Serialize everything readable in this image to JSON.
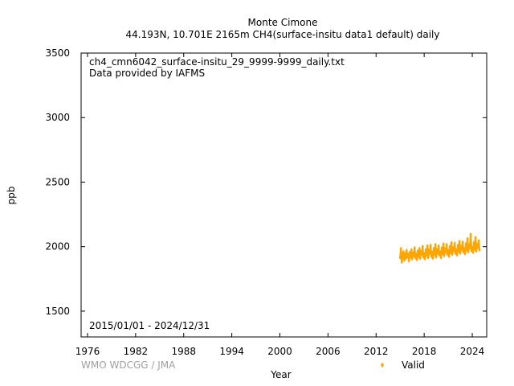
{
  "chart_data": {
    "type": "scatter",
    "title": "Monte Cimone",
    "subtitle": "44.193N, 10.701E 2165m    CH4(surface-insitu data1 default) daily",
    "file_label": "ch4_cmn6042_surface-insitu_29_9999-9999_daily.txt",
    "provider_label": "Data provided by IAFMS",
    "period_label": "2015/01/01 - 2024/12/31",
    "xlabel": "Year",
    "ylabel": "ppb",
    "xlim": [
      1975.2,
      2025.8
    ],
    "ylim": [
      1300,
      3500
    ],
    "x_ticks": [
      1976,
      1982,
      1988,
      1994,
      2000,
      2006,
      2012,
      2018,
      2024
    ],
    "y_ticks": [
      1500,
      2000,
      2500,
      3000,
      3500
    ],
    "grid": false,
    "legend_position": "bottom-right",
    "series": [
      {
        "name": "Valid",
        "color": "#ffa500",
        "marker": "diamond",
        "x": [
          2015.0,
          2015.1,
          2015.2,
          2015.3,
          2015.4,
          2015.5,
          2015.6,
          2015.7,
          2015.8,
          2015.9,
          2016.0,
          2016.1,
          2016.2,
          2016.3,
          2016.4,
          2016.5,
          2016.6,
          2016.7,
          2016.8,
          2016.9,
          2017.0,
          2017.1,
          2017.2,
          2017.3,
          2017.4,
          2017.5,
          2017.6,
          2017.7,
          2017.8,
          2017.9,
          2018.0,
          2018.1,
          2018.2,
          2018.3,
          2018.4,
          2018.5,
          2018.6,
          2018.7,
          2018.8,
          2018.9,
          2019.0,
          2019.1,
          2019.2,
          2019.3,
          2019.4,
          2019.5,
          2019.6,
          2019.7,
          2019.8,
          2019.9,
          2020.0,
          2020.1,
          2020.2,
          2020.3,
          2020.4,
          2020.5,
          2020.6,
          2020.7,
          2020.8,
          2020.9,
          2021.0,
          2021.1,
          2021.2,
          2021.3,
          2021.4,
          2021.5,
          2021.6,
          2021.7,
          2021.8,
          2021.9,
          2022.0,
          2022.1,
          2022.2,
          2022.3,
          2022.4,
          2022.5,
          2022.6,
          2022.7,
          2022.8,
          2022.9,
          2023.0,
          2023.1,
          2023.2,
          2023.3,
          2023.4,
          2023.5,
          2023.6,
          2023.7,
          2023.8,
          2023.9,
          2024.0,
          2024.1,
          2024.2,
          2024.3,
          2024.4,
          2024.5,
          2024.6,
          2024.7,
          2024.8,
          2024.9
        ],
        "y": [
          1915,
          1985,
          1880,
          1930,
          1960,
          1895,
          1945,
          1910,
          1970,
          1925,
          1935,
          1890,
          1955,
          1920,
          1975,
          1905,
          1950,
          1930,
          1990,
          1915,
          1940,
          1900,
          1965,
          1925,
          1985,
          1910,
          1955,
          1940,
          2000,
          1920,
          1945,
          1905,
          1975,
          1935,
          2005,
          1915,
          1965,
          1950,
          2010,
          1925,
          1955,
          1910,
          1985,
          1940,
          2015,
          1920,
          1970,
          1955,
          2005,
          1935,
          1960,
          1915,
          1990,
          1945,
          2020,
          1930,
          1980,
          1960,
          2015,
          1940,
          1970,
          1925,
          2000,
          1955,
          2030,
          1940,
          1990,
          1970,
          2025,
          1950,
          1975,
          1935,
          2010,
          1965,
          2040,
          1950,
          2000,
          1980,
          2035,
          1960,
          1985,
          1945,
          2020,
          1975,
          2060,
          1960,
          2010,
          1990,
          2095,
          1970,
          1990,
          1955,
          2030,
          1980,
          2070,
          1965,
          2015,
          1995,
          2045,
          1975
        ]
      }
    ]
  },
  "footer": {
    "credit": "WMO WDCGG / JMA"
  }
}
